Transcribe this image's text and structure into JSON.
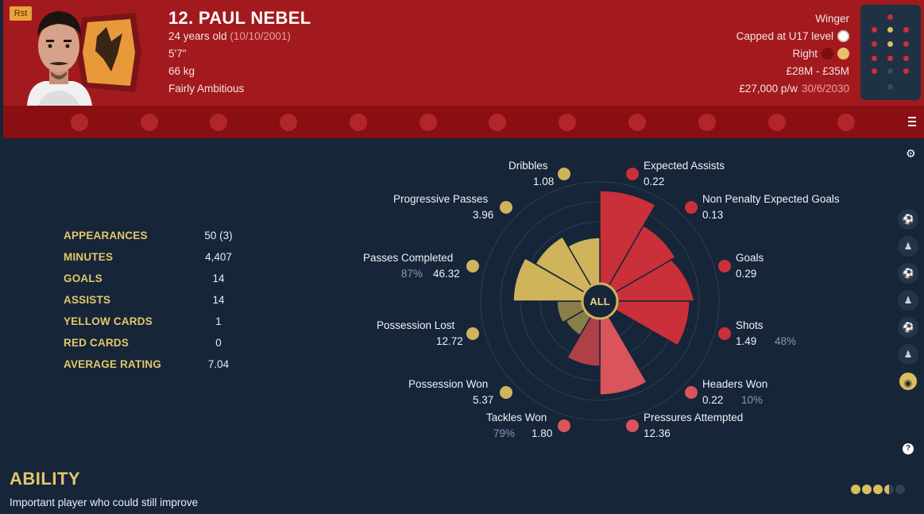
{
  "header": {
    "badge": "Rst",
    "name": "12. PAUL NEBEL",
    "age": "24 years old",
    "dob": "(10/10/2001)",
    "height": "5'7\"",
    "weight": "66 kg",
    "personality": "Fairly Ambitious",
    "position": "Winger",
    "international": "Capped at U17 level",
    "foot": "Right",
    "value": "£28M - £35M",
    "wage": "£27,000 p/w",
    "contract_end": "30/6/2030"
  },
  "tabs": [
    "anchor-icon",
    "book-icon",
    "running-icon",
    "hammer-sickle-icon",
    "lips-icon",
    "syringe-icon",
    "world-icon",
    "sun-icon",
    "boot-icon",
    "wave-icon",
    "target-icon",
    "fox-icon"
  ],
  "stats": [
    {
      "label": "APPEARANCES",
      "value": "50 (3)"
    },
    {
      "label": "MINUTES",
      "value": "4,407"
    },
    {
      "label": "GOALS",
      "value": "14"
    },
    {
      "label": "ASSISTS",
      "value": "14"
    },
    {
      "label": "YELLOW CARDS",
      "value": "1"
    },
    {
      "label": "RED CARDS",
      "value": "0"
    },
    {
      "label": "AVERAGE RATING",
      "value": "7.04"
    }
  ],
  "radar": {
    "center_label": "ALL",
    "metrics": [
      {
        "label": "Dribbles",
        "value": "1.08",
        "pct": ""
      },
      {
        "label": "Expected Assists",
        "value": "0.22",
        "pct": ""
      },
      {
        "label": "Non Penalty Expected Goals",
        "value": "0.13",
        "pct": ""
      },
      {
        "label": "Goals",
        "value": "0.29",
        "pct": ""
      },
      {
        "label": "Shots",
        "value": "1.49",
        "pct": "48%"
      },
      {
        "label": "Headers Won",
        "value": "0.22",
        "pct": "10%"
      },
      {
        "label": "Pressures Attempted",
        "value": "12.36",
        "pct": ""
      },
      {
        "label": "Tackles Won",
        "value": "1.80",
        "pct": "79%"
      },
      {
        "label": "Possession Won",
        "value": "5.37",
        "pct": ""
      },
      {
        "label": "Possession Lost",
        "value": "12.72",
        "pct": ""
      },
      {
        "label": "Passes Completed",
        "value": "46.32",
        "pct": "87%"
      },
      {
        "label": "Progressive Passes",
        "value": "3.96",
        "pct": ""
      }
    ],
    "colors": {
      "attack": "#c9303a",
      "possession": "#cfb45c",
      "defence": "#d9545b"
    }
  },
  "ability": {
    "title": "ABILITY",
    "description": "Important player who could still improve",
    "stars": 3.5
  }
}
